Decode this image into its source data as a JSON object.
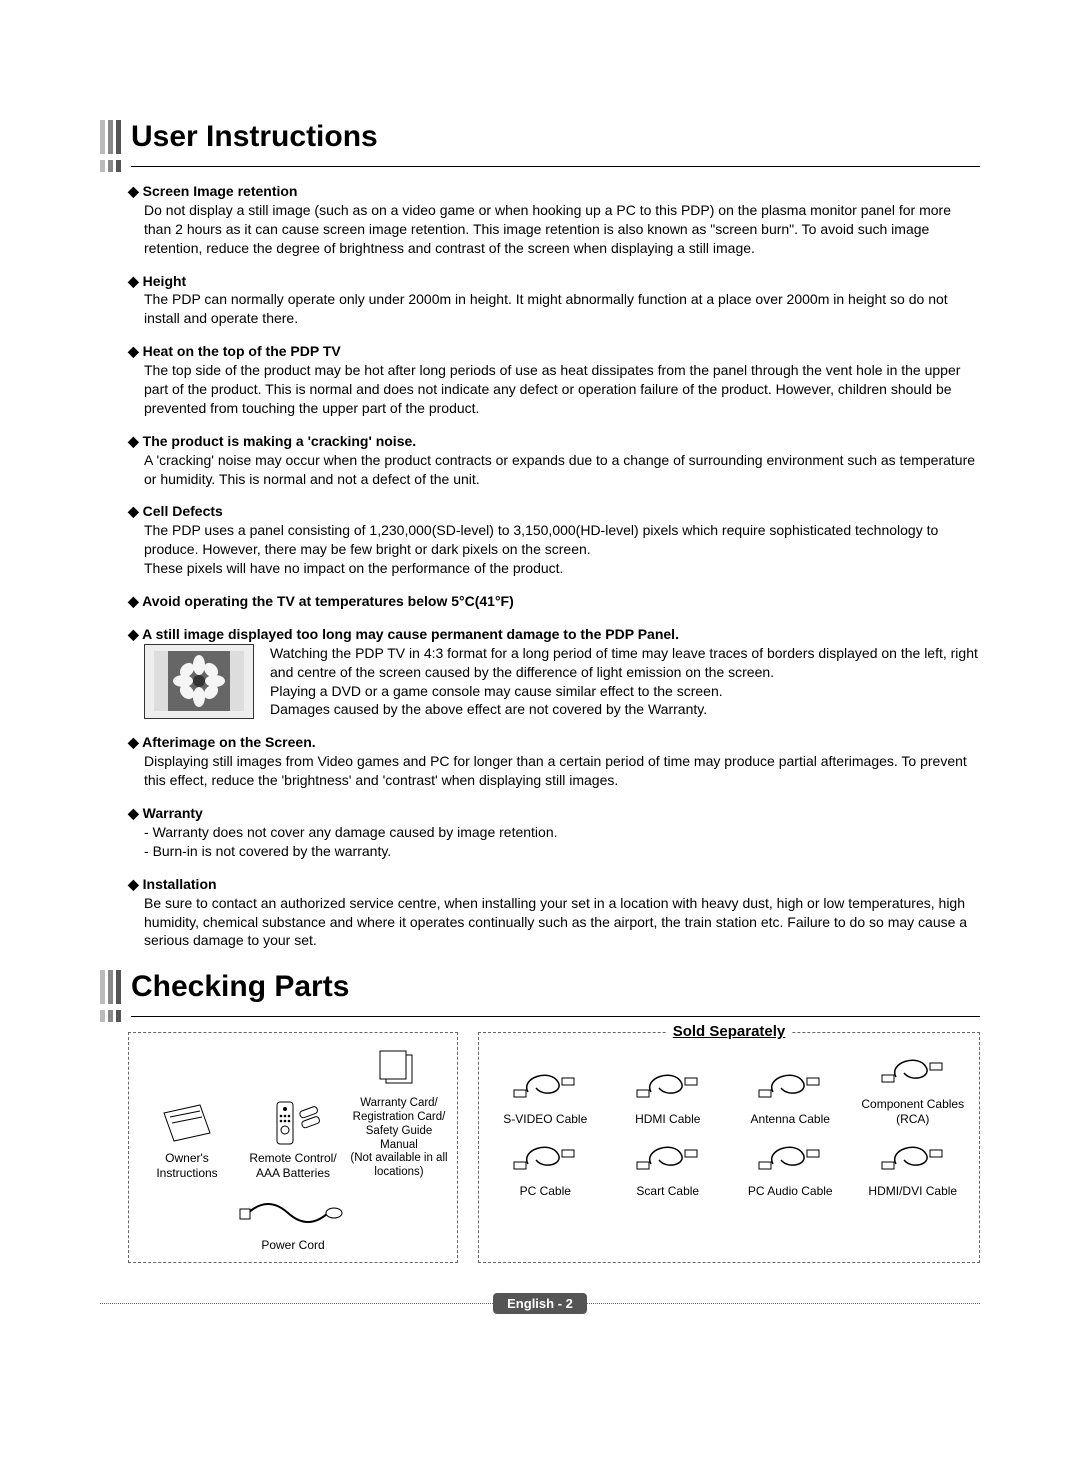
{
  "page": {
    "background": "#ffffff",
    "text_color": "#000000",
    "body_fontsize": 14
  },
  "section1": {
    "title": "User Instructions",
    "title_fontsize": 30,
    "bar_colors": [
      "#bbbbbb",
      "#888888",
      "#555555"
    ],
    "items": [
      {
        "title": "Screen Image retention",
        "body": "Do not display a still image (such as on a video game or when hooking up a PC to this PDP) on the plasma monitor panel for more than 2 hours as it can cause screen image retention. This image retention is also known as \"screen burn\". To avoid such image retention, reduce the degree of brightness and contrast of the screen when displaying a still image."
      },
      {
        "title": "Height",
        "body": "The PDP can normally operate only under 2000m in height. It might abnormally function at a place over 2000m in height so do not install and operate there."
      },
      {
        "title": "Heat on the top of the PDP TV",
        "body": "The top side of the product may be hot after long periods of use as heat dissipates from the panel through the vent hole in the upper part of the product. This is normal and does not indicate any defect or operation failure of the product. However, children should be prevented from touching the upper part of the product."
      },
      {
        "title": "The product is making a 'cracking' noise.",
        "body": "A 'cracking' noise may occur when the product contracts or expands due to a change of surrounding environment such as temperature or humidity. This is normal and not a defect of the unit."
      },
      {
        "title": "Cell Defects",
        "body": "The PDP uses a panel consisting of 1,230,000(SD-level) to 3,150,000(HD-level) pixels which require sophisticated technology to produce. However, there may be few bright or dark pixels on the screen.\nThese pixels will have no impact on the performance of the product."
      },
      {
        "title": "Avoid operating the TV at temperatures below 5°C(41°F)",
        "body": ""
      },
      {
        "title": "A still image displayed too long may cause permanent damage to the PDP Panel.",
        "image": true,
        "body_lines": [
          "Watching the PDP TV in 4:3 format for a long period of time may leave traces of borders displayed on the left, right and centre of the screen caused by the difference of light emission on the screen.",
          "Playing a DVD or a game console may cause similar effect to the screen.",
          "Damages caused by the above effect are not covered by the Warranty."
        ]
      },
      {
        "title": "Afterimage on the Screen.",
        "body": "Displaying still images from Video games and PC for longer than a certain period of time may produce partial afterimages. To prevent this effect, reduce the 'brightness' and 'contrast' when displaying still images."
      },
      {
        "title": "Warranty",
        "dashes": [
          "Warranty does not cover any damage caused by image retention.",
          "Burn-in is not covered by the warranty."
        ]
      },
      {
        "title": "Installation",
        "body": "Be sure to contact an authorized service centre, when installing your set in a location with heavy dust, high or low temperatures, high humidity, chemical substance and where it operates continually such as the airport, the train station etc. Failure to do so may cause a serious damage to your set."
      }
    ]
  },
  "section2": {
    "title": "Checking Parts",
    "sold_separately_label": "Sold Separately",
    "included": [
      {
        "icon": "manual",
        "label": "Owner's\nInstructions"
      },
      {
        "icon": "remote",
        "label": "Remote Control/\nAAA Batteries"
      },
      {
        "icon": "cards",
        "label": "Warranty Card/\nRegistration Card/\nSafety Guide Manual\n(Not available in all\nlocations)"
      },
      {
        "icon": "power",
        "label": "Power Cord",
        "span": 3
      }
    ],
    "separate": [
      {
        "icon": "cable-round",
        "label": "S-VIDEO Cable"
      },
      {
        "icon": "cable-coil",
        "label": "HDMI Cable"
      },
      {
        "icon": "cable-loop",
        "label": "Antenna Cable"
      },
      {
        "icon": "cable-rca",
        "label": "Component Cables\n(RCA)"
      },
      {
        "icon": "cable-pc",
        "label": "PC Cable"
      },
      {
        "icon": "cable-scart",
        "label": "Scart Cable"
      },
      {
        "icon": "cable-audio",
        "label": "PC Audio Cable"
      },
      {
        "icon": "cable-hdmi",
        "label": "HDMI/DVI Cable"
      }
    ]
  },
  "footer": {
    "label": "English - 2",
    "pill_bg": "#555555",
    "pill_color": "#ffffff"
  }
}
